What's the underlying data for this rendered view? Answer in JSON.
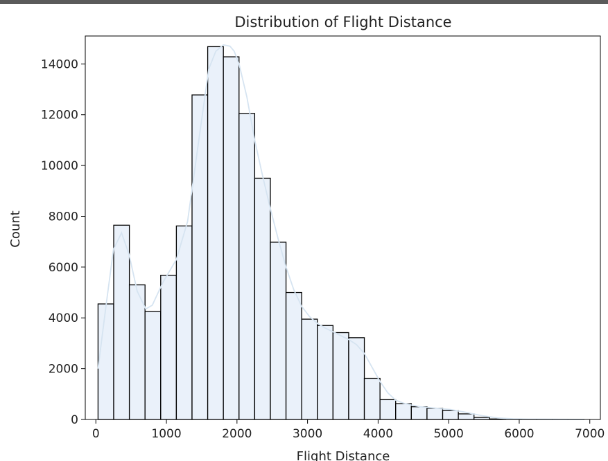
{
  "chart_data": {
    "type": "bar",
    "title": "Distribution of Flight Distance",
    "xlabel": "Flight Distance",
    "ylabel": "Count",
    "xlim": [
      -150,
      7150
    ],
    "ylim": [
      0,
      15100
    ],
    "xticks": [
      0,
      1000,
      2000,
      3000,
      4000,
      5000,
      6000,
      7000
    ],
    "yticks": [
      0,
      2000,
      4000,
      6000,
      8000,
      10000,
      12000,
      14000
    ],
    "bin_edges": [
      31,
      253,
      475,
      697,
      919,
      1141,
      1363,
      1585,
      1807,
      2029,
      2251,
      2473,
      2695,
      2917,
      3139,
      3361,
      3583,
      3805,
      4027,
      4249,
      4471,
      4693,
      4915,
      5137,
      5359,
      5581,
      5803,
      6025,
      6247,
      6469,
      6691,
      6913
    ],
    "counts": [
      4550,
      7650,
      5300,
      4250,
      5680,
      7620,
      12780,
      14680,
      14280,
      12050,
      9500,
      6980,
      5000,
      3950,
      3700,
      3420,
      3220,
      1620,
      780,
      620,
      500,
      440,
      350,
      220,
      80,
      20,
      10,
      5,
      5,
      5,
      3
    ],
    "kde": {
      "x": [
        31,
        150,
        250,
        364,
        470,
        586,
        708,
        800,
        950,
        1141,
        1300,
        1474,
        1600,
        1700,
        1807,
        1900,
        1960,
        2029,
        2140,
        2251,
        2362,
        2473,
        2584,
        2695,
        2806,
        2917,
        3028,
        3139,
        3250,
        3361,
        3472,
        3583,
        3694,
        3805,
        3916,
        4027,
        4138,
        4249,
        4360,
        4471,
        4600,
        4804,
        5026,
        5248,
        5470,
        5692,
        5914,
        6136,
        6358,
        6580,
        6802,
        6913
      ],
      "y": [
        2000,
        4600,
        6700,
        7350,
        6500,
        5050,
        4350,
        4500,
        5400,
        6300,
        7800,
        11300,
        13800,
        14500,
        14750,
        14700,
        14500,
        14000,
        12700,
        11000,
        9600,
        8300,
        7100,
        6000,
        5100,
        4450,
        4050,
        3780,
        3600,
        3450,
        3300,
        3150,
        2950,
        2600,
        2050,
        1500,
        1050,
        760,
        640,
        570,
        500,
        450,
        390,
        280,
        150,
        60,
        25,
        12,
        8,
        5,
        3,
        2
      ]
    },
    "bar_fill": "#eaf1fa",
    "bar_edge": "#000000",
    "kde_color": "#d6e4f1",
    "grid": false,
    "legend": "none"
  }
}
